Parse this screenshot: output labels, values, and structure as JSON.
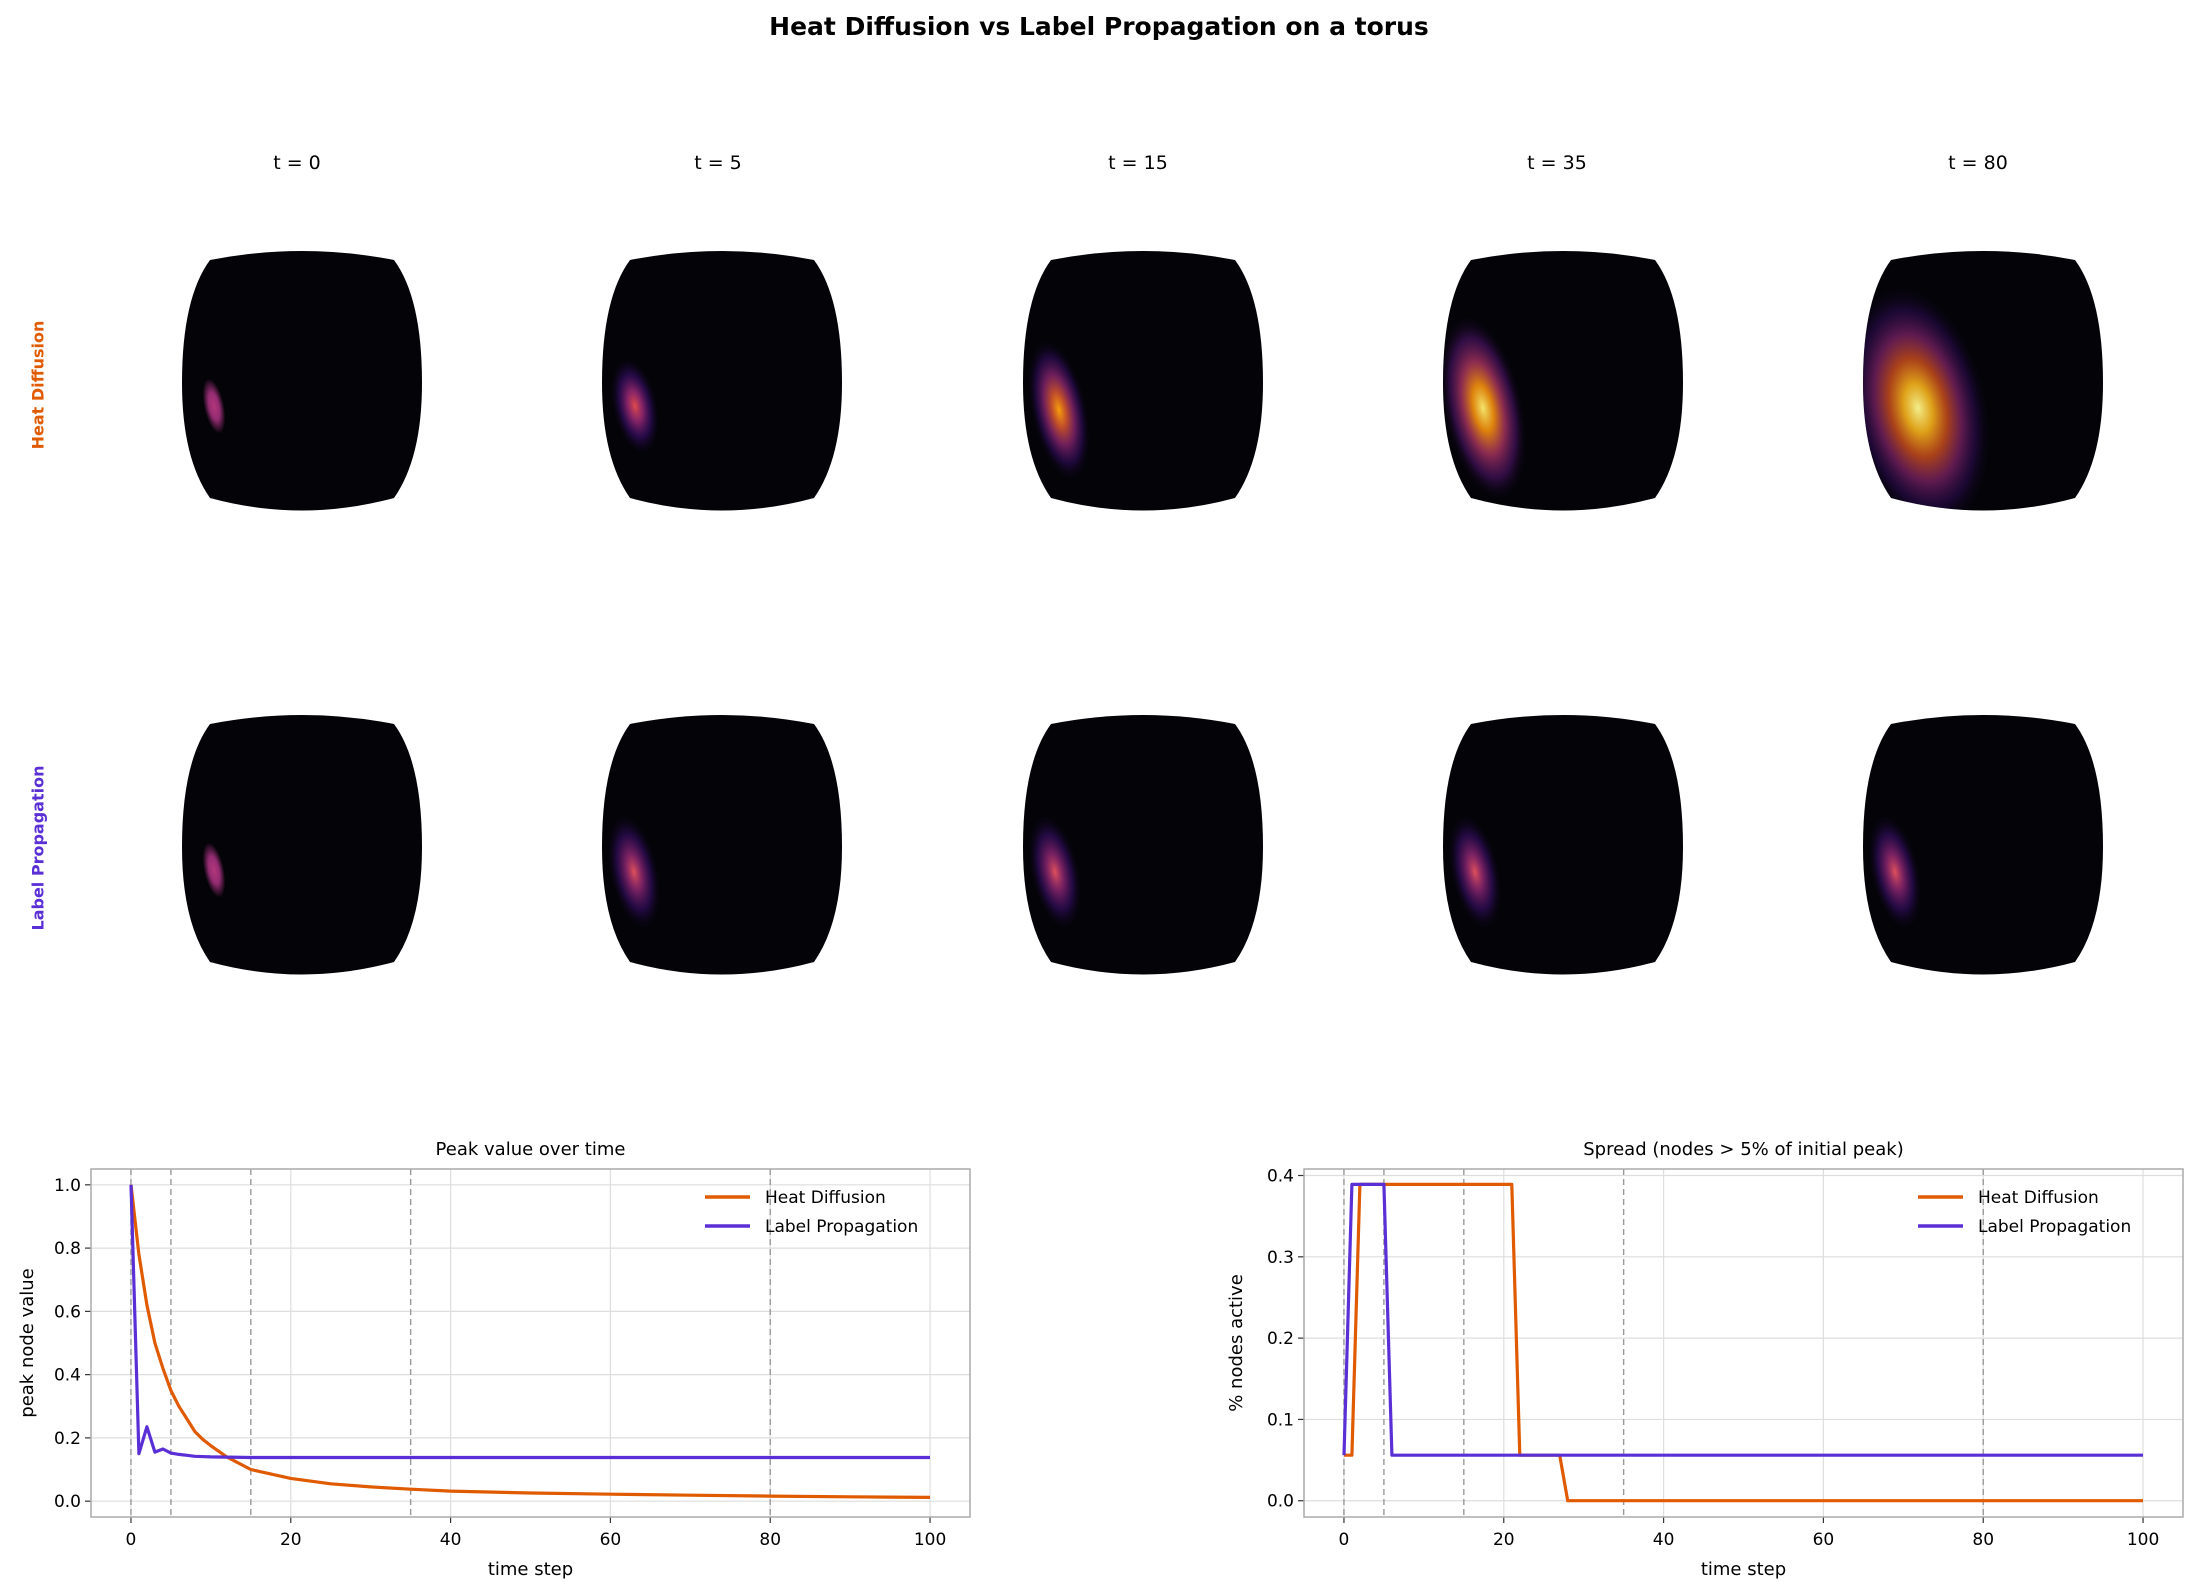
{
  "title": "Heat Diffusion vs Label Propagation on a torus",
  "columns": [
    "t = 0",
    "t = 5",
    "t = 15",
    "t = 35",
    "t = 80"
  ],
  "rows": [
    {
      "label": "Heat Diffusion",
      "color": "#e05a00"
    },
    {
      "label": "Label Propagation",
      "color": "#5b2fd6"
    }
  ],
  "colormap": "inferno",
  "chart_data": [
    {
      "type": "line",
      "title": "Peak value over time",
      "xlabel": "time step",
      "ylabel": "peak node value",
      "xlim": [
        -5,
        105
      ],
      "ylim": [
        -0.05,
        1.05
      ],
      "xticks": [
        0,
        20,
        40,
        60,
        80,
        100
      ],
      "yticks": [
        0.0,
        0.2,
        0.4,
        0.6,
        0.8,
        1.0
      ],
      "ytick_labels": [
        "0.0",
        "0.2",
        "0.4",
        "0.6",
        "0.8",
        "1.0"
      ],
      "grid": true,
      "legend": "top-right",
      "vlines": [
        0,
        5,
        15,
        35,
        80
      ],
      "series": [
        {
          "name": "Heat Diffusion",
          "color": "#e05a00",
          "x": [
            0,
            1,
            2,
            3,
            4,
            5,
            6,
            7,
            8,
            9,
            10,
            12,
            15,
            20,
            25,
            30,
            35,
            40,
            50,
            60,
            70,
            80,
            90,
            100
          ],
          "y": [
            1.0,
            0.78,
            0.62,
            0.5,
            0.42,
            0.35,
            0.3,
            0.26,
            0.22,
            0.195,
            0.175,
            0.14,
            0.1,
            0.072,
            0.055,
            0.045,
            0.038,
            0.032,
            0.026,
            0.022,
            0.019,
            0.016,
            0.014,
            0.012
          ]
        },
        {
          "name": "Label Propagation",
          "color": "#5b2fd6",
          "x": [
            0,
            1,
            2,
            3,
            4,
            5,
            6,
            7,
            8,
            10,
            15,
            20,
            40,
            60,
            80,
            100
          ],
          "y": [
            1.0,
            0.15,
            0.235,
            0.155,
            0.165,
            0.152,
            0.148,
            0.145,
            0.142,
            0.14,
            0.138,
            0.138,
            0.138,
            0.138,
            0.138,
            0.138
          ]
        }
      ]
    },
    {
      "type": "line",
      "title": "Spread  (nodes > 5% of initial peak)",
      "xlabel": "time step",
      "ylabel": "% nodes active",
      "xlim": [
        -5,
        105
      ],
      "ylim": [
        -0.02,
        0.408
      ],
      "xticks": [
        0,
        20,
        40,
        60,
        80,
        100
      ],
      "yticks": [
        0.0,
        0.1,
        0.2,
        0.3,
        0.4
      ],
      "ytick_labels": [
        "0.0",
        "0.1",
        "0.2",
        "0.3",
        "0.4"
      ],
      "grid": true,
      "legend": "top-right",
      "vlines": [
        0,
        5,
        15,
        35,
        80
      ],
      "series": [
        {
          "name": "Heat Diffusion",
          "color": "#e05a00",
          "x": [
            0,
            1,
            2,
            21,
            22,
            27,
            28,
            100
          ],
          "y": [
            0.056,
            0.056,
            0.389,
            0.389,
            0.056,
            0.056,
            0.0,
            0.0
          ]
        },
        {
          "name": "Label Propagation",
          "color": "#5b2fd6",
          "x": [
            0,
            1,
            5,
            6,
            100
          ],
          "y": [
            0.056,
            0.389,
            0.389,
            0.056,
            0.056
          ]
        }
      ]
    }
  ]
}
